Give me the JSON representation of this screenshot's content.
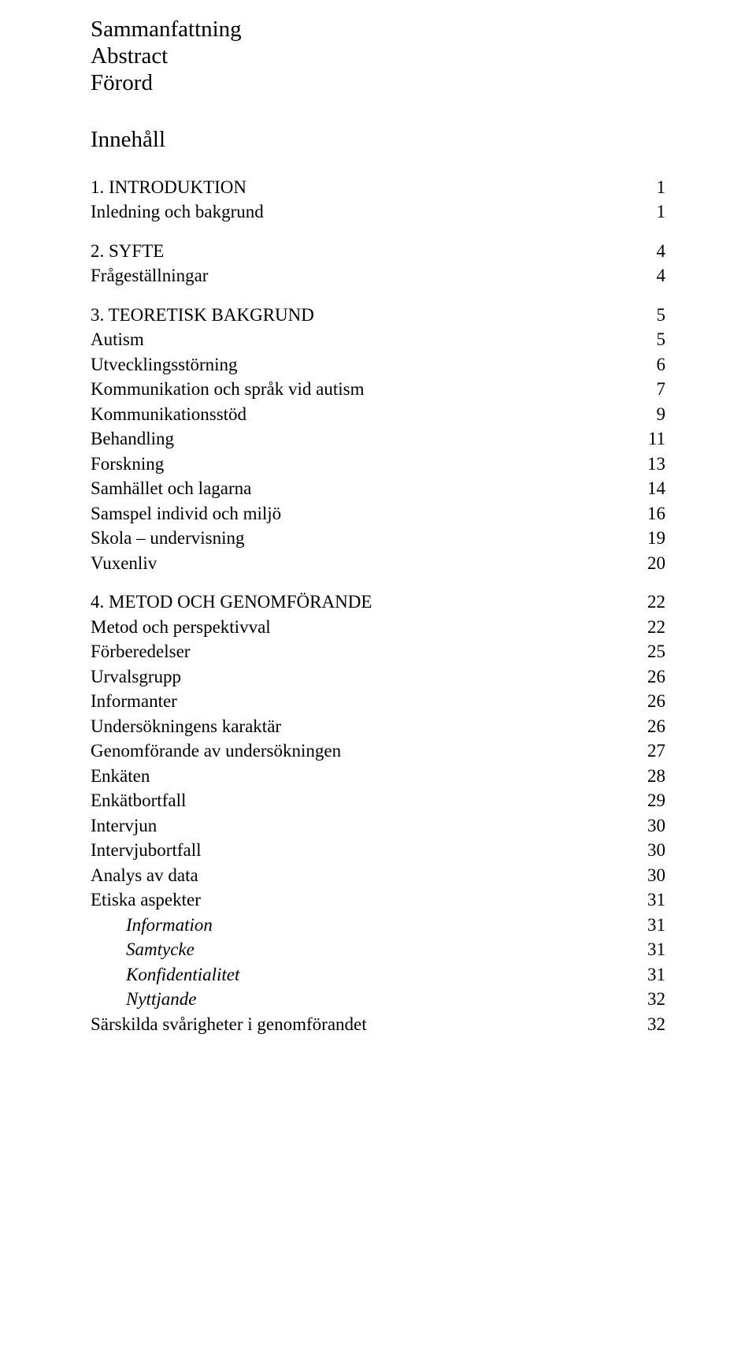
{
  "front": {
    "line1": "Sammanfattning",
    "line2": "Abstract",
    "line3": "Förord"
  },
  "heading": "Innehåll",
  "toc": [
    {
      "label": "1. INTRODUKTION",
      "page": "1",
      "chapter": true,
      "first": true
    },
    {
      "label": "Inledning och bakgrund",
      "page": "1"
    },
    {
      "label": "2. SYFTE",
      "page": "4",
      "chapter": true
    },
    {
      "label": "Frågeställningar",
      "page": "4",
      "leader": "spaced"
    },
    {
      "label": "3. TEORETISK BAKGRUND",
      "page": "5",
      "chapter": true
    },
    {
      "label": "Autism",
      "page": "5"
    },
    {
      "label": "Utvecklingsstörning",
      "page": "6"
    },
    {
      "label": "Kommunikation och språk vid autism",
      "page": "7"
    },
    {
      "label": "Kommunikationsstöd",
      "page": "9"
    },
    {
      "label": "Behandling",
      "page": "11"
    },
    {
      "label": "Forskning",
      "page": "13"
    },
    {
      "label": "Samhället och lagarna",
      "page": "14"
    },
    {
      "label": "Samspel individ och miljö",
      "page": "16"
    },
    {
      "label": "Skola – undervisning",
      "page": "19"
    },
    {
      "label": "Vuxenliv",
      "page": "20"
    },
    {
      "label": "4. METOD OCH GENOMFÖRANDE",
      "page": "22",
      "chapter": true
    },
    {
      "label": "Metod och perspektivval",
      "page": "22"
    },
    {
      "label": "Förberedelser",
      "page": "25"
    },
    {
      "label": "Urvalsgrupp",
      "page": "26"
    },
    {
      "label": "Informanter",
      "page": "26",
      "leader": "spaced"
    },
    {
      "label": "Undersökningens karaktär",
      "page": "26"
    },
    {
      "label": "Genomförande av undersökningen",
      "page": "27"
    },
    {
      "label": "Enkäten",
      "page": "28"
    },
    {
      "label": "Enkätbortfall",
      "page": "29"
    },
    {
      "label": "Intervjun",
      "page": "30"
    },
    {
      "label": "Intervjubortfall",
      "page": "30"
    },
    {
      "label": "Analys av data",
      "page": "30"
    },
    {
      "label": "Etiska aspekter",
      "page": "31"
    },
    {
      "label": "Information",
      "page": "31",
      "sub": true
    },
    {
      "label": "Samtycke",
      "page": "31",
      "sub": true
    },
    {
      "label": "Konfidentialitet",
      "page": "31",
      "sub": true
    },
    {
      "label": "Nyttjande",
      "page": "32",
      "sub": true
    },
    {
      "label": "Särskilda svårigheter i genomförandet",
      "page": "32"
    }
  ]
}
